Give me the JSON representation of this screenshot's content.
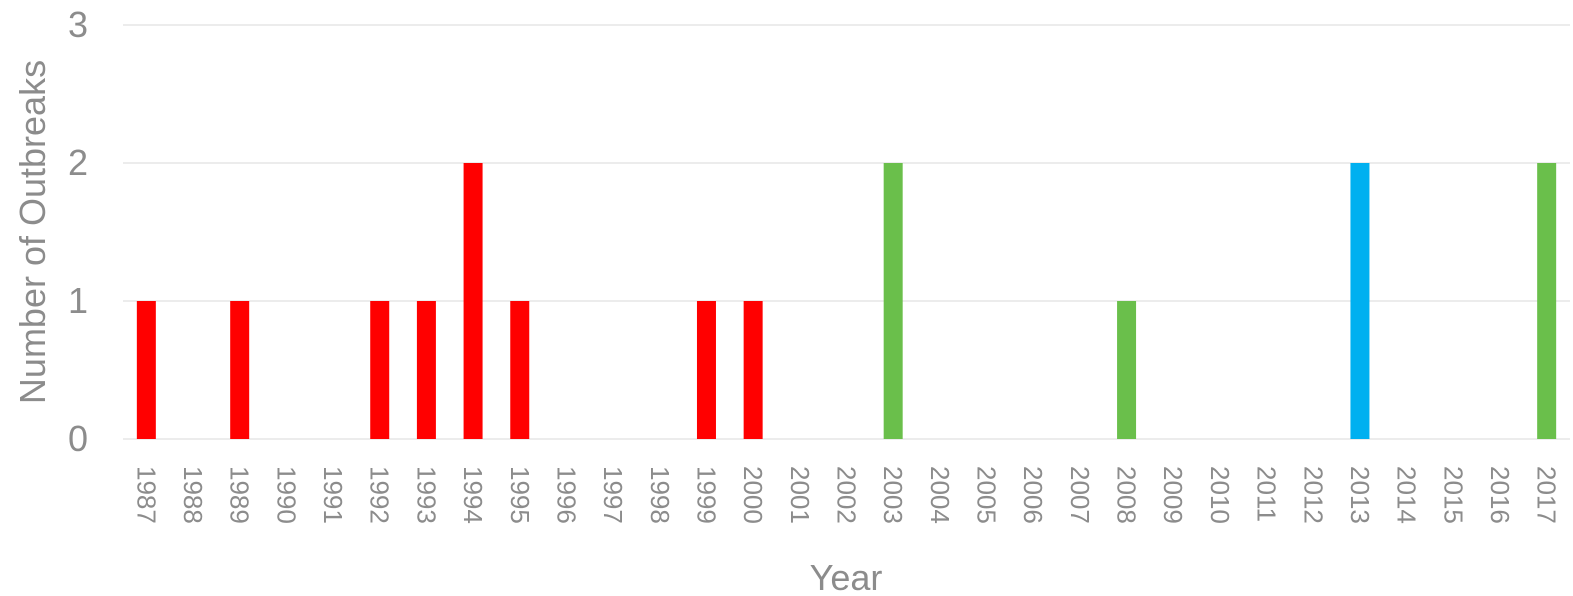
{
  "chart_data": {
    "type": "bar",
    "title": "",
    "xlabel": "Year",
    "ylabel": "Number of Outbreaks",
    "ylim": [
      0,
      3
    ],
    "yticks": [
      0,
      1,
      2,
      3
    ],
    "grid": true,
    "legend": "none",
    "categories": [
      "1987",
      "1988",
      "1989",
      "1990",
      "1991",
      "1992",
      "1993",
      "1994",
      "1995",
      "1996",
      "1997",
      "1998",
      "1999",
      "2000",
      "2001",
      "2002",
      "2003",
      "2004",
      "2005",
      "2006",
      "2007",
      "2008",
      "2009",
      "2010",
      "2011",
      "2012",
      "2013",
      "2014",
      "2015",
      "2016",
      "2017"
    ],
    "values": [
      1,
      0,
      1,
      0,
      0,
      1,
      1,
      2,
      1,
      0,
      0,
      0,
      1,
      1,
      0,
      0,
      2,
      0,
      0,
      0,
      0,
      1,
      0,
      0,
      0,
      0,
      2,
      0,
      0,
      0,
      2
    ],
    "bar_colors": [
      "#ff0000",
      "#ff0000",
      "#ff0000",
      "#ff0000",
      "#ff0000",
      "#ff0000",
      "#ff0000",
      "#ff0000",
      "#ff0000",
      "#ff0000",
      "#ff0000",
      "#ff0000",
      "#ff0000",
      "#ff0000",
      "#ff0000",
      "#ff0000",
      "#6abf4b",
      "#6abf4b",
      "#6abf4b",
      "#6abf4b",
      "#6abf4b",
      "#6abf4b",
      "#6abf4b",
      "#6abf4b",
      "#6abf4b",
      "#6abf4b",
      "#00b0f0",
      "#6abf4b",
      "#6abf4b",
      "#6abf4b",
      "#6abf4b"
    ]
  }
}
